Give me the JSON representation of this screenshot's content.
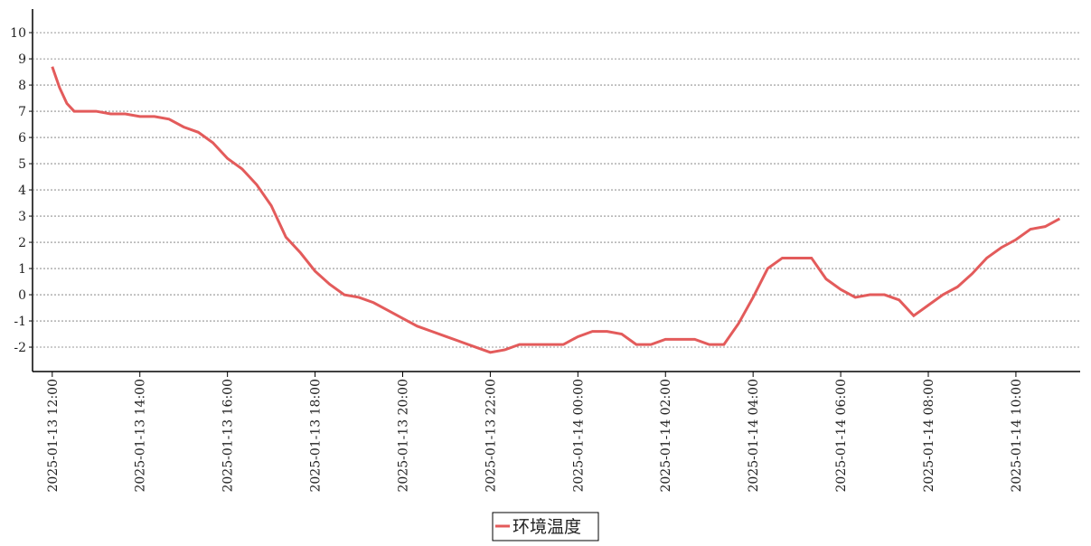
{
  "chart_data": {
    "type": "line",
    "x": [
      "2025-01-13 12:00",
      "2025-01-13 12:05",
      "2025-01-13 12:10",
      "2025-01-13 12:20",
      "2025-01-13 12:30",
      "2025-01-13 13:00",
      "2025-01-13 13:20",
      "2025-01-13 13:40",
      "2025-01-13 14:00",
      "2025-01-13 14:20",
      "2025-01-13 14:40",
      "2025-01-13 15:00",
      "2025-01-13 15:20",
      "2025-01-13 15:40",
      "2025-01-13 16:00",
      "2025-01-13 16:20",
      "2025-01-13 16:40",
      "2025-01-13 17:00",
      "2025-01-13 17:20",
      "2025-01-13 17:40",
      "2025-01-13 18:00",
      "2025-01-13 18:20",
      "2025-01-13 18:40",
      "2025-01-13 19:00",
      "2025-01-13 19:20",
      "2025-01-13 19:40",
      "2025-01-13 20:00",
      "2025-01-13 20:20",
      "2025-01-13 20:40",
      "2025-01-13 21:00",
      "2025-01-13 21:20",
      "2025-01-13 21:40",
      "2025-01-13 22:00",
      "2025-01-13 22:20",
      "2025-01-13 22:40",
      "2025-01-13 23:00",
      "2025-01-13 23:20",
      "2025-01-13 23:40",
      "2025-01-14 00:00",
      "2025-01-14 00:20",
      "2025-01-14 00:40",
      "2025-01-14 01:00",
      "2025-01-14 01:20",
      "2025-01-14 01:40",
      "2025-01-14 02:00",
      "2025-01-14 02:20",
      "2025-01-14 02:40",
      "2025-01-14 03:00",
      "2025-01-14 03:20",
      "2025-01-14 03:40",
      "2025-01-14 04:00",
      "2025-01-14 04:20",
      "2025-01-14 04:40",
      "2025-01-14 05:00",
      "2025-01-14 05:20",
      "2025-01-14 05:40",
      "2025-01-14 06:00",
      "2025-01-14 06:20",
      "2025-01-14 06:40",
      "2025-01-14 07:00",
      "2025-01-14 07:20",
      "2025-01-14 07:40",
      "2025-01-14 08:00",
      "2025-01-14 08:20",
      "2025-01-14 08:40",
      "2025-01-14 09:00",
      "2025-01-14 09:20",
      "2025-01-14 09:40",
      "2025-01-14 10:00",
      "2025-01-14 10:20",
      "2025-01-14 10:40",
      "2025-01-14 11:00"
    ],
    "series": [
      {
        "name": "环境温度",
        "color": "#e35b5b",
        "values": [
          8.7,
          8.3,
          7.9,
          7.3,
          7.0,
          7.0,
          6.9,
          6.9,
          6.8,
          6.8,
          6.7,
          6.4,
          6.2,
          5.8,
          5.2,
          4.8,
          4.2,
          3.4,
          2.2,
          1.6,
          0.9,
          0.4,
          0.0,
          -0.1,
          -0.3,
          -0.6,
          -0.9,
          -1.2,
          -1.4,
          -1.6,
          -1.8,
          -2.0,
          -2.2,
          -2.1,
          -1.9,
          -1.9,
          -1.9,
          -1.9,
          -1.6,
          -1.4,
          -1.4,
          -1.5,
          -1.9,
          -1.9,
          -1.7,
          -1.7,
          -1.7,
          -1.9,
          -1.9,
          -1.1,
          -0.1,
          1.0,
          1.4,
          1.4,
          1.4,
          0.6,
          0.2,
          -0.1,
          0.0,
          0.0,
          -0.2,
          -0.8,
          -0.4,
          0.0,
          0.3,
          0.8,
          1.4,
          1.8,
          2.1,
          2.5,
          2.6,
          2.9
        ]
      }
    ],
    "xlim": [
      "2025-01-13 11:33",
      "2025-01-14 11:28"
    ],
    "xticks": [
      "2025-01-13 12:00",
      "2025-01-13 14:00",
      "2025-01-13 16:00",
      "2025-01-13 18:00",
      "2025-01-13 20:00",
      "2025-01-13 22:00",
      "2025-01-14 00:00",
      "2025-01-14 02:00",
      "2025-01-14 04:00",
      "2025-01-14 06:00",
      "2025-01-14 08:00",
      "2025-01-14 10:00"
    ],
    "ylim": [
      -2.93,
      10.9
    ],
    "yticks": [
      -2,
      -1,
      0,
      1,
      2,
      3,
      4,
      5,
      6,
      7,
      8,
      9,
      10
    ],
    "grid": true
  }
}
